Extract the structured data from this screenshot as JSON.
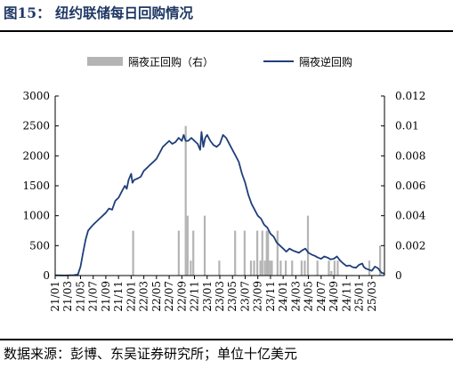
{
  "header": {
    "title": "图15：  纽约联储每日回购情况"
  },
  "footer": {
    "source": "数据来源：彭博、东吴证券研究所；单位十亿美元"
  },
  "colors": {
    "line": "#1f3f7a",
    "bar": "#b4b4b4",
    "title": "#1f3864"
  },
  "chart_data": {
    "type": "line",
    "title": "",
    "legend": {
      "placement": "top",
      "entries": [
        {
          "key": "bar",
          "label": "隔夜正回购（右）"
        },
        {
          "key": "line",
          "label": "隔夜逆回购"
        }
      ]
    },
    "x_tick_labels": [
      "21/01",
      "21/03",
      "21/05",
      "21/07",
      "21/09",
      "21/11",
      "22/01",
      "22/03",
      "22/05",
      "22/07",
      "22/09",
      "22/11",
      "23/01",
      "23/03",
      "23/05",
      "23/07",
      "23/09",
      "23/11",
      "24/01",
      "24/03",
      "24/05",
      "24/07",
      "24/09",
      "24/11",
      "25/01",
      "25/03"
    ],
    "x_range": [
      "2021-01",
      "2025-04"
    ],
    "y_left": {
      "ticks": [
        0,
        500,
        1000,
        1500,
        2000,
        2500,
        3000
      ],
      "ylim": [
        0,
        3000
      ]
    },
    "y_right": {
      "ticks": [
        "0",
        "0.002",
        "0.004",
        "0.006",
        "0.008",
        "0.01",
        "0.012"
      ],
      "ylim": [
        0,
        0.012
      ]
    },
    "grid": false,
    "series": [
      {
        "name": "隔夜逆回购",
        "kind": "line",
        "axis": "left",
        "points": [
          [
            0,
            5
          ],
          [
            1.5,
            2
          ],
          [
            3,
            8
          ],
          [
            3.6,
            20
          ],
          [
            4.0,
            150
          ],
          [
            4.4,
            380
          ],
          [
            4.8,
            600
          ],
          [
            5.2,
            750
          ],
          [
            5.6,
            800
          ],
          [
            6.0,
            850
          ],
          [
            6.5,
            900
          ],
          [
            7.0,
            950
          ],
          [
            7.5,
            1000
          ],
          [
            8.0,
            1050
          ],
          [
            8.5,
            1120
          ],
          [
            9.0,
            1100
          ],
          [
            9.5,
            1250
          ],
          [
            10.0,
            1300
          ],
          [
            10.5,
            1400
          ],
          [
            11.0,
            1500
          ],
          [
            11.3,
            1450
          ],
          [
            11.6,
            1600
          ],
          [
            12.0,
            1700
          ],
          [
            12.2,
            1550
          ],
          [
            12.5,
            1600
          ],
          [
            13.0,
            1620
          ],
          [
            13.5,
            1650
          ],
          [
            14.0,
            1750
          ],
          [
            14.5,
            1800
          ],
          [
            15.0,
            1850
          ],
          [
            15.5,
            1900
          ],
          [
            16.0,
            1950
          ],
          [
            16.5,
            2050
          ],
          [
            17.0,
            2150
          ],
          [
            17.5,
            2200
          ],
          [
            18.0,
            2250
          ],
          [
            18.5,
            2200
          ],
          [
            19.0,
            2230
          ],
          [
            19.5,
            2300
          ],
          [
            20.0,
            2250
          ],
          [
            20.3,
            2350
          ],
          [
            20.6,
            2250
          ],
          [
            21.0,
            2250
          ],
          [
            21.5,
            2300
          ],
          [
            22.0,
            2250
          ],
          [
            22.5,
            2200
          ],
          [
            22.9,
            2100
          ],
          [
            23.1,
            2400
          ],
          [
            23.4,
            2150
          ],
          [
            23.7,
            2300
          ],
          [
            24.0,
            2350
          ],
          [
            24.5,
            2250
          ],
          [
            25.0,
            2180
          ],
          [
            25.5,
            2150
          ],
          [
            26.0,
            2200
          ],
          [
            26.5,
            2350
          ],
          [
            27.0,
            2300
          ],
          [
            27.5,
            2200
          ],
          [
            28.0,
            2100
          ],
          [
            28.5,
            2000
          ],
          [
            29.0,
            1900
          ],
          [
            29.5,
            1700
          ],
          [
            30.0,
            1550
          ],
          [
            30.5,
            1350
          ],
          [
            31.0,
            1200
          ],
          [
            31.5,
            1100
          ],
          [
            32.0,
            1000
          ],
          [
            32.5,
            950
          ],
          [
            33.0,
            850
          ],
          [
            33.5,
            800
          ],
          [
            34.0,
            700
          ],
          [
            34.5,
            650
          ],
          [
            35.0,
            550
          ],
          [
            35.5,
            500
          ],
          [
            36.0,
            450
          ],
          [
            36.5,
            400
          ],
          [
            37.0,
            450
          ],
          [
            37.5,
            420
          ],
          [
            38.0,
            400
          ],
          [
            38.5,
            380
          ],
          [
            39.0,
            420
          ],
          [
            39.5,
            450
          ],
          [
            40.0,
            380
          ],
          [
            40.5,
            350
          ],
          [
            41.0,
            330
          ],
          [
            41.5,
            300
          ],
          [
            42.0,
            280
          ],
          [
            42.5,
            320
          ],
          [
            43.0,
            300
          ],
          [
            43.5,
            270
          ],
          [
            44.0,
            280
          ],
          [
            44.5,
            320
          ],
          [
            45.0,
            250
          ],
          [
            45.5,
            200
          ],
          [
            46.0,
            160
          ],
          [
            46.5,
            170
          ],
          [
            47.0,
            140
          ],
          [
            47.5,
            130
          ],
          [
            48.0,
            180
          ],
          [
            48.5,
            200
          ],
          [
            48.7,
            150
          ],
          [
            49.0,
            120
          ],
          [
            49.5,
            100
          ],
          [
            50.0,
            80
          ],
          [
            50.5,
            150
          ],
          [
            51.0,
            120
          ],
          [
            51.5,
            50
          ],
          [
            52.0,
            30
          ]
        ]
      },
      {
        "name": "隔夜正回购（右）",
        "kind": "bar",
        "axis": "right",
        "points": [
          [
            12.3,
            0.003
          ],
          [
            19.5,
            0.003
          ],
          [
            20.6,
            0.01
          ],
          [
            20.9,
            0.004
          ],
          [
            21.4,
            0.001
          ],
          [
            21.8,
            0.003
          ],
          [
            23.6,
            0.004
          ],
          [
            25.9,
            0.001
          ],
          [
            28.4,
            0.003
          ],
          [
            29.9,
            0.003
          ],
          [
            30.9,
            0.001
          ],
          [
            31.4,
            0.001
          ],
          [
            31.9,
            0.003
          ],
          [
            32.4,
            0.001
          ],
          [
            32.7,
            0.003
          ],
          [
            33.1,
            0.001
          ],
          [
            33.4,
            0.003
          ],
          [
            33.6,
            0.003
          ],
          [
            33.9,
            0.001
          ],
          [
            34.2,
            0.001
          ],
          [
            35.1,
            0.003
          ],
          [
            35.6,
            0.001
          ],
          [
            36.4,
            0.001
          ],
          [
            37.4,
            0.001
          ],
          [
            38.9,
            0.001
          ],
          [
            39.4,
            0.001
          ],
          [
            39.9,
            0.004
          ],
          [
            41.4,
            0.001
          ],
          [
            43.2,
            0.001
          ],
          [
            43.6,
            0.0003
          ],
          [
            44.1,
            0.001
          ],
          [
            44.6,
            0.001
          ],
          [
            49.6,
            0.001
          ],
          [
            51.3,
            0.002
          ]
        ]
      }
    ]
  }
}
